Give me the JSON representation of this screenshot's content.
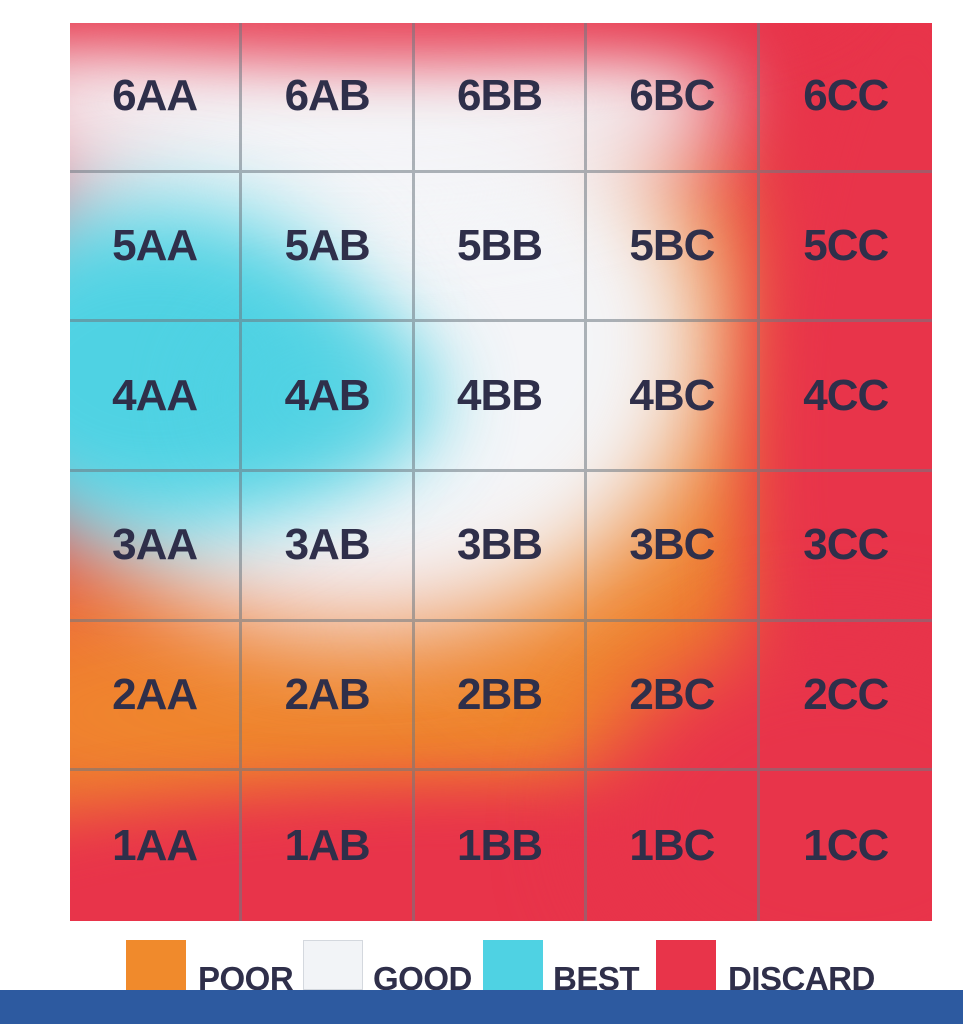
{
  "grid": {
    "rows": [
      [
        "6AA",
        "6AB",
        "6BB",
        "6BC",
        "6CC"
      ],
      [
        "5AA",
        "5AB",
        "5BB",
        "5BC",
        "5CC"
      ],
      [
        "4AA",
        "4AB",
        "4BB",
        "4BC",
        "4CC"
      ],
      [
        "3AA",
        "3AB",
        "3BB",
        "3BC",
        "3CC"
      ],
      [
        "2AA",
        "2AB",
        "2BB",
        "2BC",
        "2CC"
      ],
      [
        "1AA",
        "1AB",
        "1BB",
        "1BC",
        "1CC"
      ]
    ]
  },
  "legend": {
    "items": [
      {
        "label": "POOR",
        "color": "#f08a2c"
      },
      {
        "label": "GOOD",
        "color": "#f2f4f7"
      },
      {
        "label": "BEST",
        "color": "#4fd2e3"
      },
      {
        "label": "DISCARD",
        "color": "#e8344a"
      }
    ]
  },
  "colors": {
    "discard": "#e8344a",
    "poor": "#f08a2c",
    "good": "#f2f4f7",
    "best": "#4fd2e3",
    "bottom_bar": "#2d5aa0",
    "text": "#2f2f4a"
  }
}
